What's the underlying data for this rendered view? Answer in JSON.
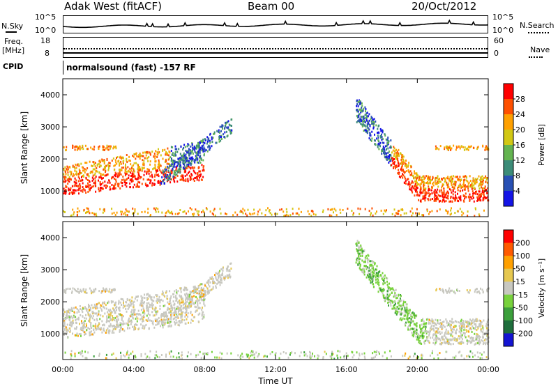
{
  "header": {
    "station": "Adak West (fitACF)",
    "beam": "Beam 00",
    "date": "20/Oct/2012"
  },
  "top_panels": {
    "nsky_label": "N.Sky",
    "nsearch_label": "N.Search",
    "noise_ticks": [
      "10^5",
      "10^0"
    ],
    "freq_label_1": "Freq.",
    "freq_label_2": "[MHz]",
    "freq_ticks": [
      "18",
      "8"
    ],
    "nave_label": "Nave",
    "nave_ticks": [
      "60",
      "0"
    ],
    "cpid_label": "CPID",
    "cpid_value": "normalsound (fast) -157 RF"
  },
  "colors": {
    "power_scale": [
      "#1414e6",
      "#2850b4",
      "#3c8c78",
      "#64b450",
      "#d2c814",
      "#ffa000",
      "#ff5000",
      "#ff0000"
    ],
    "velocity_scale": [
      "#1414d2",
      "#1e6e3c",
      "#3ca03c",
      "#78d23c",
      "#c8c8c0",
      "#e6c850",
      "#ffa000",
      "#ff5a00",
      "#ff0000"
    ]
  },
  "chart_data": [
    {
      "type": "heatmap",
      "name": "power",
      "ylabel": "Slant Range [km]",
      "xlabel": "Time UT",
      "xlim_hours": [
        0,
        24
      ],
      "ylim_km": [
        200,
        4500
      ],
      "y_ticks": [
        "1000",
        "2000",
        "3000",
        "4000"
      ],
      "x_ticks": [
        "00:00",
        "04:00",
        "08:00",
        "12:00",
        "16:00",
        "20:00",
        "00:00"
      ],
      "colorbar_label": "Power [dB]",
      "colorbar_ticks": [
        "4",
        "8",
        "12",
        "16",
        "20",
        "24",
        "28"
      ]
    },
    {
      "type": "heatmap",
      "name": "velocity",
      "ylabel": "Slant Range [km]",
      "xlabel": "Time UT",
      "xlim_hours": [
        0,
        24
      ],
      "ylim_km": [
        200,
        4500
      ],
      "y_ticks": [
        "1000",
        "2000",
        "3000",
        "4000"
      ],
      "x_ticks": [
        "00:00",
        "04:00",
        "08:00",
        "12:00",
        "16:00",
        "20:00",
        "00:00"
      ],
      "colorbar_label": "Velocity [m s⁻¹]",
      "colorbar_ticks": [
        "200",
        "100",
        "50",
        "15",
        "-15",
        "-50",
        "-100",
        "-200"
      ]
    }
  ],
  "x_axis_title": "Time UT"
}
